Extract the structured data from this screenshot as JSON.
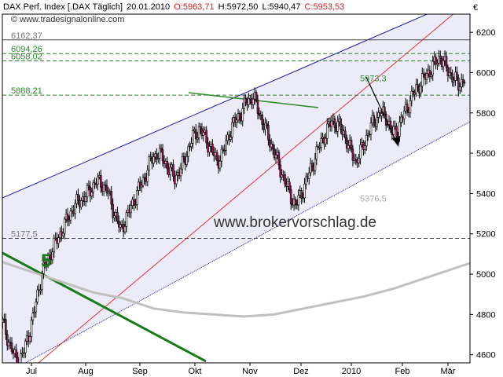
{
  "header": {
    "instrument": "DAX Perf. Index [.DAX Täglich]",
    "date": "20.01.2010",
    "open": "O:5963,71",
    "high": "H:5972,50",
    "low": "L:5940,47",
    "close": "C:5953,53",
    "source": "© www.tradesignalonline.com",
    "currency": "€"
  },
  "colors": {
    "background": "#ffffff",
    "channel_fill": "#ececf8",
    "channel_line": "#1a1a9e",
    "trend_line": "#e03030",
    "long_trend": "#1a7a1a",
    "neckline": "#2a8a2a",
    "moving_average": "#c0c0c0",
    "candle_up": "#ffffff",
    "candle_down": "#a0185a",
    "green_text": "#2a8a2a",
    "grey_text": "#777777",
    "open_value": "#d02020",
    "close_value": "#d02020"
  },
  "chart_data": {
    "type": "candlestick",
    "watermark": "www.brokervorschlag.de",
    "wave_label": "5",
    "x_ticks": [
      "Jul",
      "Aug",
      "Sep",
      "Okt",
      "Nov",
      "Dez",
      "2010",
      "Feb",
      "Mär"
    ],
    "y_ticks": [
      4600,
      4800,
      5000,
      5200,
      5400,
      5600,
      5800,
      6000,
      6200
    ],
    "ylim": [
      4560,
      6290
    ],
    "levels": [
      {
        "value": 6162.37,
        "label": "6162,37",
        "style": "solid",
        "color": "grey"
      },
      {
        "value": 6094.26,
        "label": "6094,26",
        "style": "dashed",
        "color": "green"
      },
      {
        "value": 6058.02,
        "label": "6058,02",
        "style": "dashed",
        "color": "green"
      },
      {
        "value": 5888.21,
        "label": "5888,21",
        "style": "dashed",
        "color": "green"
      },
      {
        "value": 5177.5,
        "label": "5177,5",
        "style": "dashed",
        "color": "grey"
      }
    ],
    "annotations": [
      {
        "label": "5973,3",
        "value": 5973.3,
        "color": "green"
      },
      {
        "label": "5376,5",
        "value": 5376.5,
        "color": "grey"
      }
    ],
    "price_path": [
      [
        0,
        4760
      ],
      [
        5,
        4640
      ],
      [
        8,
        4590
      ],
      [
        11,
        4560
      ],
      [
        14,
        4620
      ],
      [
        17,
        4700
      ],
      [
        20,
        4780
      ],
      [
        23,
        4900
      ],
      [
        26,
        5000
      ],
      [
        30,
        5080
      ],
      [
        34,
        5140
      ],
      [
        38,
        5200
      ],
      [
        42,
        5260
      ],
      [
        46,
        5320
      ],
      [
        50,
        5360
      ],
      [
        54,
        5380
      ],
      [
        58,
        5420
      ],
      [
        62,
        5460
      ],
      [
        66,
        5450
      ],
      [
        70,
        5400
      ],
      [
        74,
        5300
      ],
      [
        78,
        5220
      ],
      [
        82,
        5280
      ],
      [
        86,
        5350
      ],
      [
        90,
        5420
      ],
      [
        94,
        5480
      ],
      [
        98,
        5560
      ],
      [
        102,
        5600
      ],
      [
        106,
        5580
      ],
      [
        110,
        5520
      ],
      [
        114,
        5480
      ],
      [
        118,
        5520
      ],
      [
        122,
        5600
      ],
      [
        126,
        5680
      ],
      [
        130,
        5720
      ],
      [
        134,
        5680
      ],
      [
        138,
        5620
      ],
      [
        142,
        5560
      ],
      [
        146,
        5600
      ],
      [
        150,
        5700
      ],
      [
        154,
        5760
      ],
      [
        158,
        5800
      ],
      [
        162,
        5860
      ],
      [
        166,
        5880
      ],
      [
        170,
        5800
      ],
      [
        174,
        5720
      ],
      [
        178,
        5640
      ],
      [
        182,
        5560
      ],
      [
        186,
        5480
      ],
      [
        190,
        5400
      ],
      [
        194,
        5340
      ],
      [
        198,
        5400
      ],
      [
        202,
        5480
      ],
      [
        206,
        5560
      ],
      [
        210,
        5640
      ],
      [
        214,
        5700
      ],
      [
        218,
        5760
      ],
      [
        222,
        5740
      ],
      [
        226,
        5700
      ],
      [
        230,
        5620
      ],
      [
        234,
        5560
      ],
      [
        238,
        5620
      ],
      [
        242,
        5700
      ],
      [
        246,
        5760
      ],
      [
        250,
        5800
      ],
      [
        254,
        5780
      ],
      [
        258,
        5700
      ],
      [
        262,
        5720
      ],
      [
        266,
        5800
      ],
      [
        270,
        5860
      ],
      [
        274,
        5920
      ],
      [
        278,
        5960
      ],
      [
        282,
        6000
      ],
      [
        286,
        6040
      ],
      [
        290,
        6080
      ],
      [
        294,
        6020
      ],
      [
        298,
        5980
      ],
      [
        302,
        5940
      ],
      [
        306,
        5970
      ]
    ],
    "moving_average": [
      [
        0,
        5060
      ],
      [
        20,
        5010
      ],
      [
        40,
        4960
      ],
      [
        60,
        4910
      ],
      [
        80,
        4880
      ],
      [
        100,
        4830
      ],
      [
        120,
        4810
      ],
      [
        140,
        4800
      ],
      [
        160,
        4790
      ],
      [
        180,
        4800
      ],
      [
        200,
        4830
      ],
      [
        220,
        4860
      ],
      [
        240,
        4890
      ],
      [
        260,
        4930
      ],
      [
        280,
        4980
      ],
      [
        300,
        5030
      ],
      [
        320,
        5080
      ]
    ]
  }
}
